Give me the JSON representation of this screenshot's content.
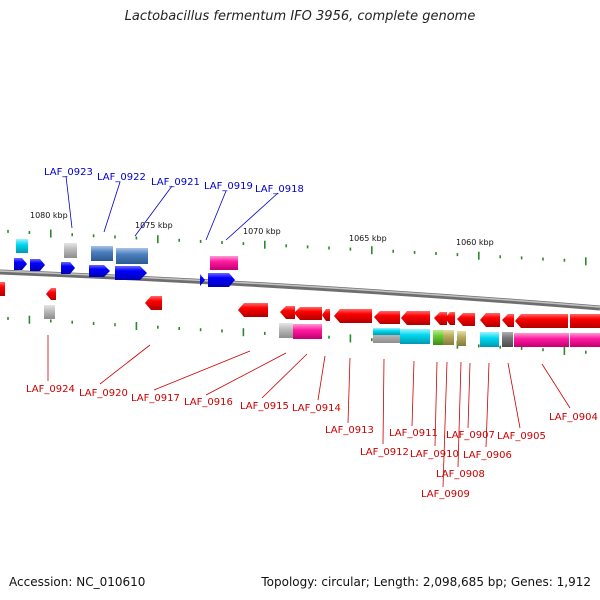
{
  "title": "Lactobacillus fermentum IFO 3956, complete genome",
  "footer": {
    "accession": "Accession: NC_010610",
    "summary": "Topology: circular; Length: 2,098,685 bp; Genes: 1,912"
  },
  "colors": {
    "forward_label": "#0000cc",
    "reverse_label": "#cc0000",
    "forward_gene": "#0000ff",
    "reverse_gene": "#ff0000",
    "tick": "#2a8a2a",
    "backbone": "#8a8a8a"
  },
  "scale_labels": [
    "1080 kbp",
    "1075 kbp",
    "1070 kbp",
    "1065 kbp",
    "1060 kbp"
  ],
  "forward_labels": [
    "LAF_0923",
    "LAF_0922",
    "LAF_0921",
    "LAF_0919",
    "LAF_0918"
  ],
  "reverse_labels": [
    "LAF_0924",
    "LAF_0920",
    "LAF_0917",
    "LAF_0916",
    "LAF_0915",
    "LAF_0914",
    "LAF_0913",
    "LAF_0912",
    "LAF_0911",
    "LAF_0910",
    "LAF_0909",
    "LAF_0908",
    "LAF_0907",
    "LAF_0906",
    "LAF_0905",
    "LAF_0904"
  ]
}
